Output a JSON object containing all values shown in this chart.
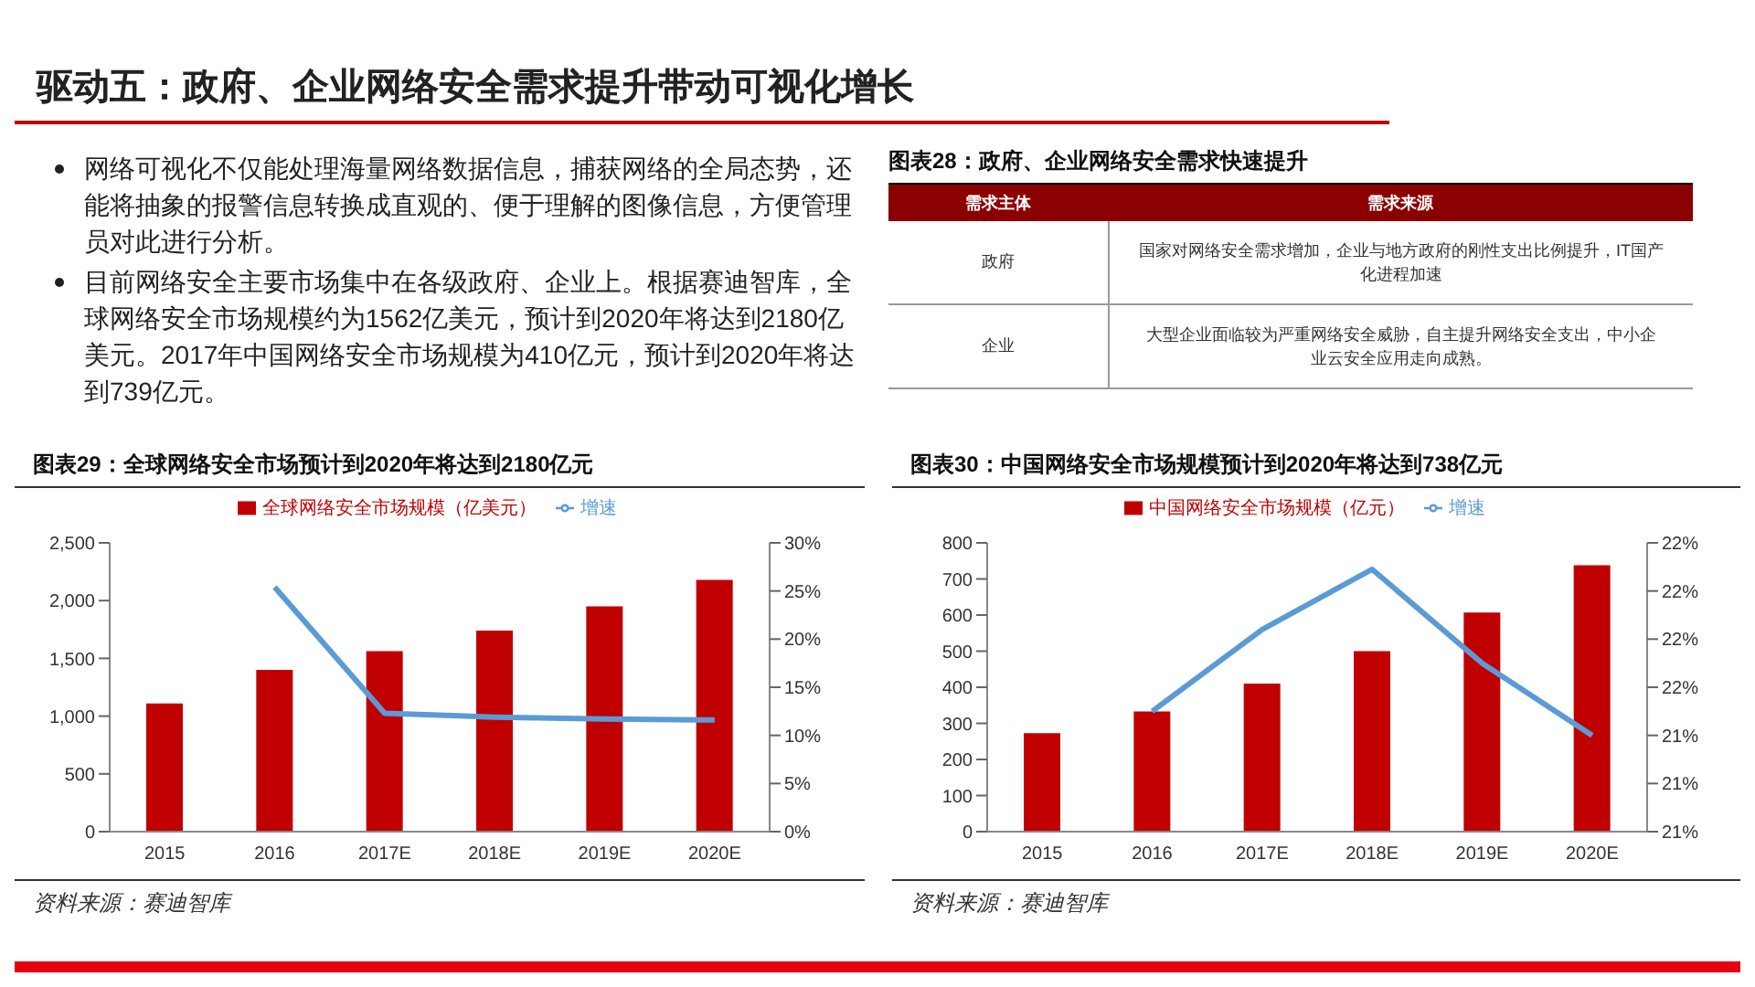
{
  "chart_data": [
    {
      "type": "other",
      "title": "驱动五：政府、企业网络安全需求提升带动可视化增长",
      "annotations": [
        "网络可视化不仅能处理海量网络数据信息，捕获网络的全局态势，还能将抽象的报警信息转换成直观的、便于理解的图像信息，方便管理员对此进行分析。",
        "目前网络安全主要市场集中在各级政府、企业上。根据赛迪智库，全球网络安全市场规模约为1562亿美元，预计到2020年将达到2180亿美元。2017年中国网络安全市场规模为410亿元，预计到2020年将达到739亿元。",
        "图表28：政府、企业网络安全需求快速提升",
        "需求主体",
        "需求来源",
        "政府",
        "国家对网络安全需求增加，企业与地方政府的刚性支出比例提升，IT国产化进程加速",
        "企业",
        "大型企业面临较为严重网络安全威胁，自主提升网络安全支出，中小企业云安全应用走向成熟。"
      ]
    },
    {
      "type": "bar",
      "title": "图表29：全球网络安全市场预计到2020年将达到2180亿元",
      "categories": [
        "2015",
        "2016",
        "2017E",
        "2018E",
        "2019E",
        "2020E"
      ],
      "series": [
        {
          "name": "全球网络安全市场规模（亿美元）",
          "color": "#c00000",
          "values": [
            1110,
            1400,
            1562,
            1740,
            1950,
            2180
          ]
        },
        {
          "name": "增速",
          "type": "line",
          "axis": "y2",
          "color": "#5b9bd5",
          "values": [
            null,
            25.4,
            12.3,
            11.9,
            11.7,
            11.6
          ]
        }
      ],
      "ylim": [
        0,
        2500
      ],
      "yticks": [
        0,
        500,
        {
          "value": 1000,
          "label": "1,000"
        },
        {
          "value": 1500,
          "label": "1,500"
        },
        {
          "value": 2000,
          "label": "2,000"
        },
        {
          "value": 2500,
          "label": "2,500"
        }
      ],
      "y2lim": [
        0,
        30
      ],
      "y2ticks": [
        {
          "value": 0,
          "label": "0%"
        },
        {
          "value": 5,
          "label": "5%"
        },
        {
          "value": 10,
          "label": "10%"
        },
        {
          "value": 15,
          "label": "15%"
        },
        {
          "value": 20,
          "label": "20%"
        },
        {
          "value": 25,
          "label": "25%"
        },
        {
          "value": 30,
          "label": "30%"
        }
      ],
      "legend": "top",
      "marker": "none",
      "annotations": [
        "资料来源：赛迪智库"
      ]
    },
    {
      "type": "bar",
      "title": "图表30：中国网络安全市场规模预计到2020年将达到738亿元",
      "categories": [
        "2015",
        "2016",
        "2017E",
        "2018E",
        "2019E",
        "2020E"
      ],
      "series": [
        {
          "name": "中国网络安全市场规模（亿元）",
          "color": "#c00000",
          "values": [
            273,
            333,
            410,
            500,
            607,
            738
          ]
        },
        {
          "name": "增速",
          "type": "line",
          "axis": "y2",
          "color": "#5b9bd5",
          "values": [
            null,
            21.4,
            21.74,
            21.99,
            21.6,
            21.3
          ]
        }
      ],
      "ylim": [
        0,
        800
      ],
      "yticks": [
        0,
        100,
        200,
        300,
        400,
        500,
        600,
        700,
        800
      ],
      "y2lim": [
        20.9,
        22.1
      ],
      "y2ticks": [
        {
          "value": 20.9,
          "label": "21%"
        },
        {
          "value": 21.1,
          "label": "21%"
        },
        {
          "value": 21.3,
          "label": "21%"
        },
        {
          "value": 21.5,
          "label": "22%"
        },
        {
          "value": 21.7,
          "label": "22%"
        },
        {
          "value": 21.9,
          "label": "22%"
        },
        {
          "value": 22.1,
          "label": "22%"
        }
      ],
      "legend": "top",
      "marker": "none",
      "annotations": [
        "资料来源：赛迪智库"
      ]
    }
  ]
}
